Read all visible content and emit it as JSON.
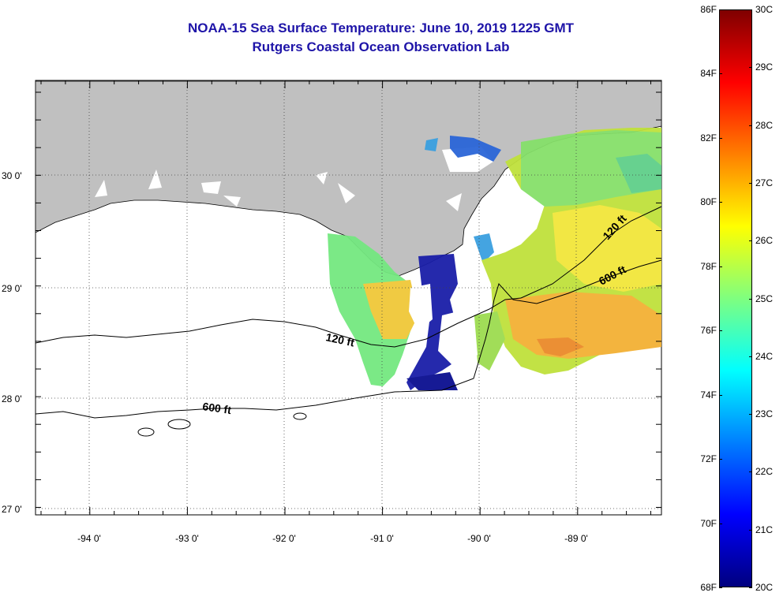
{
  "title": {
    "line1": "NOAA-15 Sea Surface Temperature:  June 10, 2019 1225 GMT",
    "line2": "Rutgers Coastal Ocean Observation Lab"
  },
  "map": {
    "lat_labels": [
      "30 0'",
      "29 0'",
      "28 0'",
      "27 0'"
    ],
    "lon_labels": [
      "-94 0'",
      "-93 0'",
      "-92 0'",
      "-91 0'",
      "-90 0'",
      "-89 0'"
    ],
    "contour_labels": [
      "120 ft",
      "600 ft",
      "120 ft",
      "600 ft"
    ],
    "colors": {
      "land": "#c0c0c0",
      "grid": "#444444",
      "contour": "#000000"
    }
  },
  "colorbar": {
    "fahrenheit": [
      "86F",
      "84F",
      "82F",
      "80F",
      "78F",
      "76F",
      "74F",
      "72F",
      "70F",
      "68F"
    ],
    "celsius": [
      "30C",
      "29C",
      "28C",
      "27C",
      "26C",
      "25C",
      "24C",
      "23C",
      "22C",
      "21C",
      "20C"
    ],
    "gradient": [
      "#7f0000",
      "#ff0000",
      "#ff7f00",
      "#ffff00",
      "#7fff7f",
      "#00ffff",
      "#007fff",
      "#0000ff",
      "#00007f"
    ]
  }
}
